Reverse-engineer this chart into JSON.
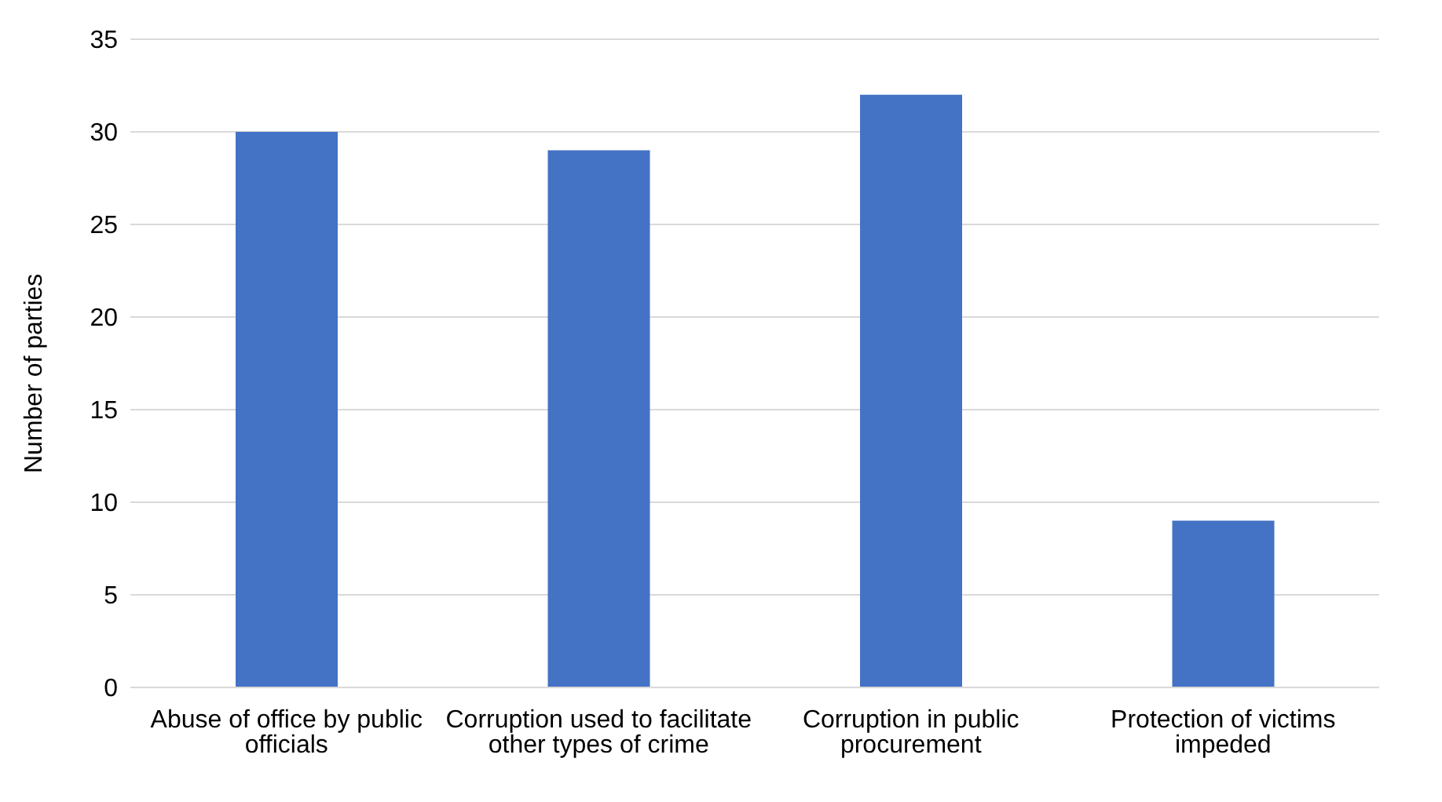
{
  "chart_data": {
    "type": "bar",
    "ylabel": "Number of parties",
    "categories": [
      "Abuse of office by public officials",
      "Corruption used to facilitate other types of crime",
      "Corruption in public procurement",
      "Protection of victims impeded"
    ],
    "values": [
      30,
      29,
      32,
      9
    ],
    "color": "#4472c4",
    "ylim": [
      0,
      35
    ],
    "yticks": [
      0,
      5,
      10,
      15,
      20,
      25,
      30,
      35
    ],
    "grid": "y",
    "legend": false
  }
}
